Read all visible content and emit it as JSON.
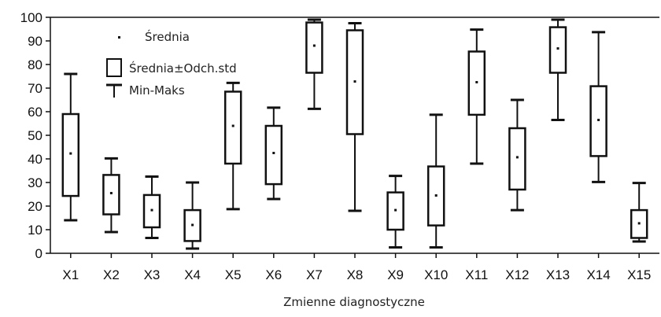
{
  "chart_data": {
    "type": "boxplot",
    "xlabel": "Zmienne diagnostyczne",
    "ylabel": "",
    "ylim": [
      0,
      100
    ],
    "yticks": [
      0,
      10,
      20,
      30,
      40,
      50,
      60,
      70,
      80,
      90,
      100
    ],
    "grid": false,
    "legend": {
      "placement": "top-left",
      "entries": [
        "Średnia",
        "Średnia±Odch.std",
        "Min-Maks"
      ]
    },
    "categories": [
      "X1",
      "X2",
      "X3",
      "X4",
      "X5",
      "X6",
      "X7",
      "X8",
      "X9",
      "X10",
      "X11",
      "X12",
      "X13",
      "X14",
      "X15"
    ],
    "mean": [
      42.3,
      25.5,
      18.3,
      12.0,
      54.0,
      42.5,
      88.0,
      72.8,
      18.3,
      24.5,
      72.5,
      40.7,
      86.8,
      56.5,
      12.7
    ],
    "box_low": [
      24.3,
      16.5,
      11.0,
      5.2,
      38.0,
      29.3,
      76.5,
      50.5,
      10.0,
      11.8,
      58.7,
      27.0,
      76.5,
      41.2,
      6.5
    ],
    "box_high": [
      59.0,
      33.2,
      24.7,
      18.3,
      68.5,
      54.0,
      97.8,
      94.5,
      25.8,
      36.8,
      85.5,
      53.0,
      95.8,
      70.8,
      18.3
    ],
    "min": [
      14.0,
      9.0,
      6.5,
      2.0,
      18.7,
      23.0,
      61.2,
      18.0,
      2.5,
      2.5,
      38.0,
      18.3,
      56.5,
      30.2,
      5.0
    ],
    "max": [
      76.0,
      40.2,
      32.5,
      30.0,
      72.2,
      61.7,
      99.0,
      97.5,
      32.8,
      58.7,
      94.8,
      65.0,
      99.0,
      93.7,
      29.8
    ]
  }
}
